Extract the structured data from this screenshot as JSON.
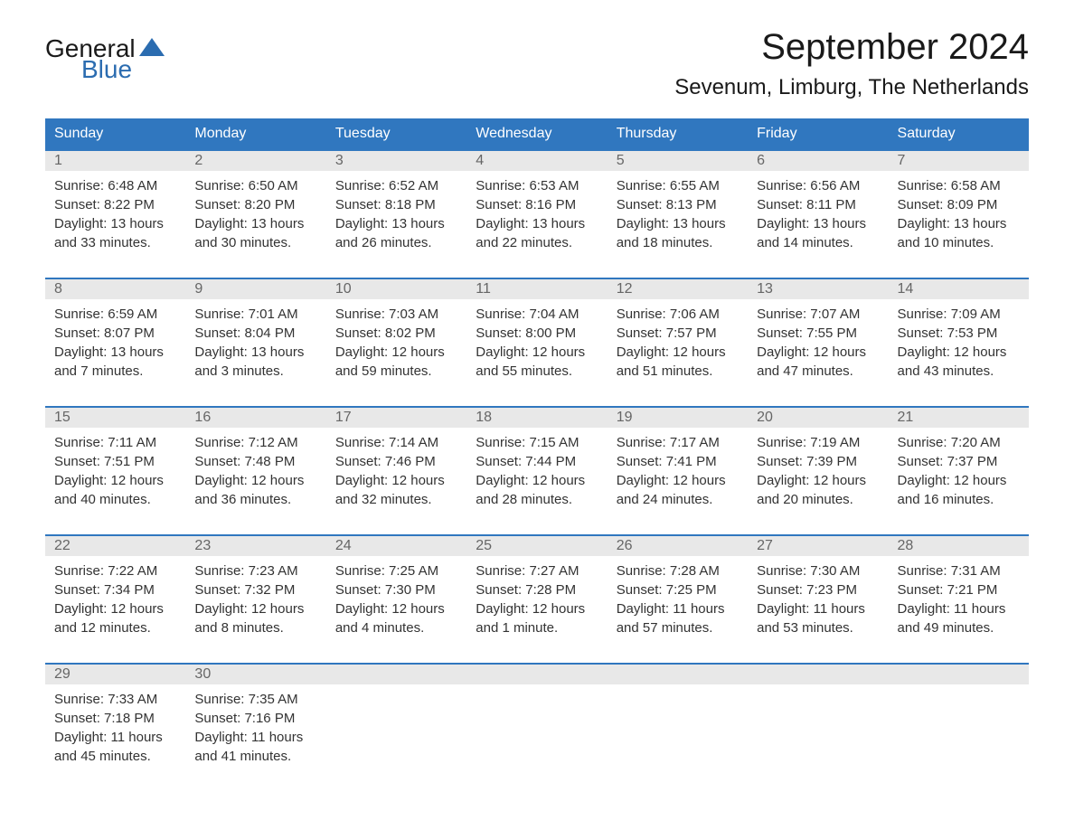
{
  "logo": {
    "text_general": "General",
    "text_blue": "Blue",
    "triangle_color": "#2b6cb0"
  },
  "title": "September 2024",
  "location": "Sevenum, Limburg, The Netherlands",
  "colors": {
    "header_bg": "#3077bf",
    "header_text": "#ffffff",
    "day_number_bg": "#e8e8e8",
    "day_number_text": "#666666",
    "body_text": "#333333",
    "border": "#3077bf",
    "background": "#ffffff"
  },
  "day_headers": [
    "Sunday",
    "Monday",
    "Tuesday",
    "Wednesday",
    "Thursday",
    "Friday",
    "Saturday"
  ],
  "weeks": [
    [
      {
        "day": "1",
        "sunrise": "Sunrise: 6:48 AM",
        "sunset": "Sunset: 8:22 PM",
        "daylight1": "Daylight: 13 hours",
        "daylight2": "and 33 minutes."
      },
      {
        "day": "2",
        "sunrise": "Sunrise: 6:50 AM",
        "sunset": "Sunset: 8:20 PM",
        "daylight1": "Daylight: 13 hours",
        "daylight2": "and 30 minutes."
      },
      {
        "day": "3",
        "sunrise": "Sunrise: 6:52 AM",
        "sunset": "Sunset: 8:18 PM",
        "daylight1": "Daylight: 13 hours",
        "daylight2": "and 26 minutes."
      },
      {
        "day": "4",
        "sunrise": "Sunrise: 6:53 AM",
        "sunset": "Sunset: 8:16 PM",
        "daylight1": "Daylight: 13 hours",
        "daylight2": "and 22 minutes."
      },
      {
        "day": "5",
        "sunrise": "Sunrise: 6:55 AM",
        "sunset": "Sunset: 8:13 PM",
        "daylight1": "Daylight: 13 hours",
        "daylight2": "and 18 minutes."
      },
      {
        "day": "6",
        "sunrise": "Sunrise: 6:56 AM",
        "sunset": "Sunset: 8:11 PM",
        "daylight1": "Daylight: 13 hours",
        "daylight2": "and 14 minutes."
      },
      {
        "day": "7",
        "sunrise": "Sunrise: 6:58 AM",
        "sunset": "Sunset: 8:09 PM",
        "daylight1": "Daylight: 13 hours",
        "daylight2": "and 10 minutes."
      }
    ],
    [
      {
        "day": "8",
        "sunrise": "Sunrise: 6:59 AM",
        "sunset": "Sunset: 8:07 PM",
        "daylight1": "Daylight: 13 hours",
        "daylight2": "and 7 minutes."
      },
      {
        "day": "9",
        "sunrise": "Sunrise: 7:01 AM",
        "sunset": "Sunset: 8:04 PM",
        "daylight1": "Daylight: 13 hours",
        "daylight2": "and 3 minutes."
      },
      {
        "day": "10",
        "sunrise": "Sunrise: 7:03 AM",
        "sunset": "Sunset: 8:02 PM",
        "daylight1": "Daylight: 12 hours",
        "daylight2": "and 59 minutes."
      },
      {
        "day": "11",
        "sunrise": "Sunrise: 7:04 AM",
        "sunset": "Sunset: 8:00 PM",
        "daylight1": "Daylight: 12 hours",
        "daylight2": "and 55 minutes."
      },
      {
        "day": "12",
        "sunrise": "Sunrise: 7:06 AM",
        "sunset": "Sunset: 7:57 PM",
        "daylight1": "Daylight: 12 hours",
        "daylight2": "and 51 minutes."
      },
      {
        "day": "13",
        "sunrise": "Sunrise: 7:07 AM",
        "sunset": "Sunset: 7:55 PM",
        "daylight1": "Daylight: 12 hours",
        "daylight2": "and 47 minutes."
      },
      {
        "day": "14",
        "sunrise": "Sunrise: 7:09 AM",
        "sunset": "Sunset: 7:53 PM",
        "daylight1": "Daylight: 12 hours",
        "daylight2": "and 43 minutes."
      }
    ],
    [
      {
        "day": "15",
        "sunrise": "Sunrise: 7:11 AM",
        "sunset": "Sunset: 7:51 PM",
        "daylight1": "Daylight: 12 hours",
        "daylight2": "and 40 minutes."
      },
      {
        "day": "16",
        "sunrise": "Sunrise: 7:12 AM",
        "sunset": "Sunset: 7:48 PM",
        "daylight1": "Daylight: 12 hours",
        "daylight2": "and 36 minutes."
      },
      {
        "day": "17",
        "sunrise": "Sunrise: 7:14 AM",
        "sunset": "Sunset: 7:46 PM",
        "daylight1": "Daylight: 12 hours",
        "daylight2": "and 32 minutes."
      },
      {
        "day": "18",
        "sunrise": "Sunrise: 7:15 AM",
        "sunset": "Sunset: 7:44 PM",
        "daylight1": "Daylight: 12 hours",
        "daylight2": "and 28 minutes."
      },
      {
        "day": "19",
        "sunrise": "Sunrise: 7:17 AM",
        "sunset": "Sunset: 7:41 PM",
        "daylight1": "Daylight: 12 hours",
        "daylight2": "and 24 minutes."
      },
      {
        "day": "20",
        "sunrise": "Sunrise: 7:19 AM",
        "sunset": "Sunset: 7:39 PM",
        "daylight1": "Daylight: 12 hours",
        "daylight2": "and 20 minutes."
      },
      {
        "day": "21",
        "sunrise": "Sunrise: 7:20 AM",
        "sunset": "Sunset: 7:37 PM",
        "daylight1": "Daylight: 12 hours",
        "daylight2": "and 16 minutes."
      }
    ],
    [
      {
        "day": "22",
        "sunrise": "Sunrise: 7:22 AM",
        "sunset": "Sunset: 7:34 PM",
        "daylight1": "Daylight: 12 hours",
        "daylight2": "and 12 minutes."
      },
      {
        "day": "23",
        "sunrise": "Sunrise: 7:23 AM",
        "sunset": "Sunset: 7:32 PM",
        "daylight1": "Daylight: 12 hours",
        "daylight2": "and 8 minutes."
      },
      {
        "day": "24",
        "sunrise": "Sunrise: 7:25 AM",
        "sunset": "Sunset: 7:30 PM",
        "daylight1": "Daylight: 12 hours",
        "daylight2": "and 4 minutes."
      },
      {
        "day": "25",
        "sunrise": "Sunrise: 7:27 AM",
        "sunset": "Sunset: 7:28 PM",
        "daylight1": "Daylight: 12 hours",
        "daylight2": "and 1 minute."
      },
      {
        "day": "26",
        "sunrise": "Sunrise: 7:28 AM",
        "sunset": "Sunset: 7:25 PM",
        "daylight1": "Daylight: 11 hours",
        "daylight2": "and 57 minutes."
      },
      {
        "day": "27",
        "sunrise": "Sunrise: 7:30 AM",
        "sunset": "Sunset: 7:23 PM",
        "daylight1": "Daylight: 11 hours",
        "daylight2": "and 53 minutes."
      },
      {
        "day": "28",
        "sunrise": "Sunrise: 7:31 AM",
        "sunset": "Sunset: 7:21 PM",
        "daylight1": "Daylight: 11 hours",
        "daylight2": "and 49 minutes."
      }
    ],
    [
      {
        "day": "29",
        "sunrise": "Sunrise: 7:33 AM",
        "sunset": "Sunset: 7:18 PM",
        "daylight1": "Daylight: 11 hours",
        "daylight2": "and 45 minutes."
      },
      {
        "day": "30",
        "sunrise": "Sunrise: 7:35 AM",
        "sunset": "Sunset: 7:16 PM",
        "daylight1": "Daylight: 11 hours",
        "daylight2": "and 41 minutes."
      },
      null,
      null,
      null,
      null,
      null
    ]
  ]
}
